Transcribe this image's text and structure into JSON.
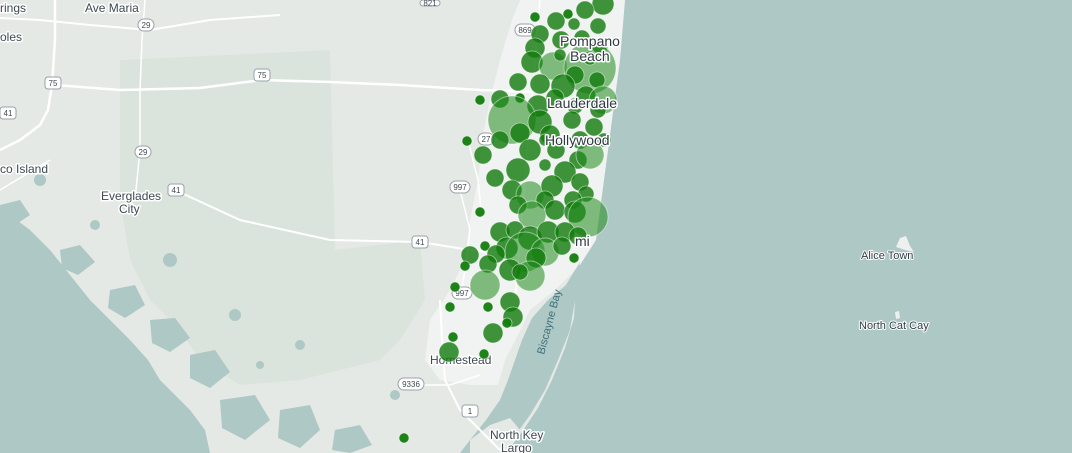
{
  "map": {
    "labels": {
      "springs": "rings",
      "ave_maria": "Ave Maria",
      "naples": "oles",
      "marco_island": "co Island",
      "everglades_city_1": "Everglades",
      "everglades_city_2": "City",
      "pompano_1": "Pompano",
      "pompano_2": "Beach",
      "lauderdale": "Lauderdale",
      "hollywood": "Hollywood",
      "miami": "mi",
      "homestead": "Homestead",
      "north_key_largo_1": "North Key",
      "north_key_largo_2": "Largo",
      "biscayne_bay": "Biscayne Bay",
      "alice_town": "Alice Town",
      "north_cat_cay": "North Cat Cay"
    },
    "shields": {
      "r29a": "29",
      "r75a": "75",
      "r75b": "75",
      "r41a": "41",
      "r29b": "29",
      "r41b": "41",
      "r997a": "997",
      "r41c": "41",
      "r997b": "997",
      "r27": "27",
      "r869": "869",
      "r9336": "9336",
      "r1": "1",
      "r821": "821"
    },
    "markers_color": "#117a0b",
    "water_color": "#aec8c6",
    "land_color": "#e5eae6"
  }
}
